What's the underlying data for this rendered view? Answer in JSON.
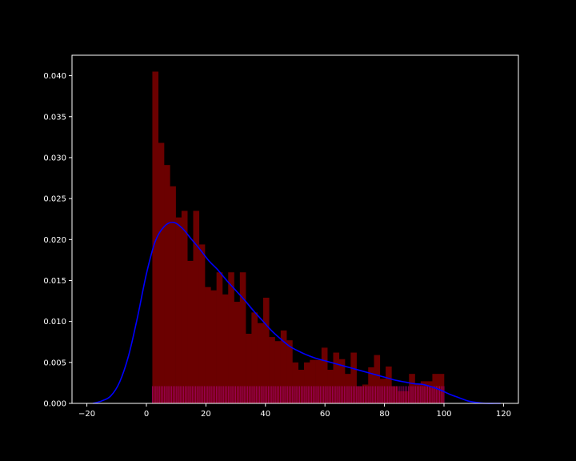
{
  "chart_data": {
    "type": "bar",
    "title": "",
    "xlabel": "",
    "ylabel": "",
    "xlim": [
      -25,
      125
    ],
    "ylim": [
      0,
      0.0425
    ],
    "x_ticks": [
      -20,
      0,
      20,
      40,
      60,
      80,
      100,
      120
    ],
    "x_tick_labels": [
      "−20",
      "0",
      "20",
      "40",
      "60",
      "80",
      "100",
      "120"
    ],
    "y_ticks": [
      0,
      0.005,
      0.01,
      0.015,
      0.02,
      0.025,
      0.03,
      0.035,
      0.04
    ],
    "y_tick_labels": [
      "0.000",
      "0.005",
      "0.010",
      "0.015",
      "0.020",
      "0.025",
      "0.030",
      "0.035",
      "0.040"
    ],
    "grid": false,
    "background": "#000000",
    "axes_color": "#ffffff",
    "histogram": {
      "color": "#6b0000",
      "bin_edges": [
        2.0,
        3.96,
        5.92,
        7.88,
        9.84,
        11.8,
        13.76,
        15.72,
        17.68,
        19.64,
        21.6,
        23.56,
        25.52,
        27.48,
        29.44,
        31.4,
        33.36,
        35.32,
        37.28,
        39.24,
        41.2,
        43.16,
        45.12,
        47.08,
        49.04,
        51.0,
        52.96,
        54.92,
        56.88,
        58.84,
        60.8,
        62.76,
        64.72,
        66.68,
        68.64,
        70.6,
        72.56,
        74.52,
        76.48,
        78.44,
        80.4,
        82.36,
        84.32,
        86.28,
        88.24,
        90.2,
        92.16,
        94.12,
        96.08,
        98.04,
        100.0
      ],
      "densities": [
        0.0405,
        0.0318,
        0.0291,
        0.0265,
        0.0227,
        0.0235,
        0.0174,
        0.0235,
        0.0194,
        0.0142,
        0.0138,
        0.016,
        0.0133,
        0.016,
        0.0124,
        0.016,
        0.0085,
        0.0111,
        0.0098,
        0.0129,
        0.0081,
        0.0076,
        0.0089,
        0.0077,
        0.005,
        0.0041,
        0.005,
        0.0053,
        0.0053,
        0.0068,
        0.0041,
        0.0062,
        0.0054,
        0.0036,
        0.0062,
        0.0021,
        0.0023,
        0.0044,
        0.0059,
        0.003,
        0.0045,
        0.0021,
        0.0015,
        0.0015,
        0.0036,
        0.0024,
        0.0027,
        0.0027,
        0.0036,
        0.0036
      ]
    },
    "kde": {
      "color": "#0000ff",
      "x": [
        -18,
        -15,
        -12,
        -9,
        -6,
        -3,
        0,
        3,
        6,
        9,
        12,
        15,
        18,
        21,
        24,
        27,
        30,
        33,
        36,
        39,
        42,
        45,
        48,
        51,
        54,
        57,
        60,
        63,
        66,
        69,
        72,
        75,
        78,
        81,
        84,
        87,
        90,
        93,
        96,
        99,
        102,
        105,
        108,
        111,
        114,
        117,
        119
      ],
      "y": [
        0.0,
        0.0003,
        0.0009,
        0.0026,
        0.0058,
        0.0105,
        0.0158,
        0.0198,
        0.0216,
        0.0221,
        0.0214,
        0.0201,
        0.0188,
        0.0174,
        0.0163,
        0.015,
        0.0138,
        0.0126,
        0.0113,
        0.0101,
        0.0089,
        0.0079,
        0.007,
        0.0064,
        0.0059,
        0.0055,
        0.0052,
        0.0049,
        0.0046,
        0.0043,
        0.004,
        0.0037,
        0.0034,
        0.0031,
        0.0028,
        0.0026,
        0.0024,
        0.0023,
        0.002,
        0.0016,
        0.0011,
        0.0007,
        0.0003,
        0.0001,
        0.0,
        0.0,
        0.0
      ]
    },
    "rug": {
      "color": "#b0007a",
      "height": 0.0021,
      "x": [
        2.0,
        2.5,
        3.0,
        3.5,
        4.0,
        4.5,
        5.0,
        5.5,
        6.0,
        6.5,
        7.0,
        7.5,
        8.0,
        8.5,
        9.0,
        9.5,
        10.0,
        10.5,
        11.0,
        11.5,
        12.0,
        12.5,
        13.0,
        13.5,
        14.0,
        14.5,
        15.0,
        15.5,
        16.0,
        16.5,
        17.0,
        17.5,
        18.0,
        18.5,
        19.0,
        19.5,
        20.0,
        20.5,
        21.0,
        21.5,
        22.0,
        22.5,
        23.0,
        23.5,
        24.0,
        24.5,
        25.0,
        25.5,
        26.0,
        26.5,
        27.0,
        27.5,
        28.0,
        28.5,
        29.0,
        29.5,
        30.0,
        30.5,
        31.0,
        31.5,
        32.0,
        32.5,
        33.0,
        33.5,
        34.0,
        34.5,
        35.0,
        35.5,
        36.0,
        36.5,
        37.0,
        37.5,
        38.0,
        38.5,
        39.0,
        39.5,
        40.0,
        40.5,
        41.0,
        41.5,
        42.0,
        42.5,
        43.0,
        43.5,
        44.0,
        44.5,
        45.0,
        45.5,
        46.0,
        46.5,
        47.0,
        47.5,
        48.0,
        48.5,
        49.0,
        49.5,
        50.0,
        50.5,
        51.0,
        51.5,
        52.0,
        52.5,
        53.0,
        53.5,
        54.0,
        54.5,
        55.0,
        55.5,
        56.0,
        56.5,
        57.0,
        57.5,
        58.0,
        58.5,
        59.0,
        59.5,
        60.0,
        60.5,
        61.0,
        61.5,
        62.0,
        62.5,
        63.0,
        63.5,
        64.0,
        64.5,
        65.0,
        65.5,
        66.0,
        66.5,
        67.0,
        67.5,
        68.0,
        68.5,
        69.0,
        69.5,
        70.0,
        70.5,
        71.0,
        71.5,
        72.0,
        72.5,
        73.0,
        73.5,
        74.0,
        74.5,
        75.0,
        75.5,
        76.0,
        76.5,
        77.0,
        77.5,
        78.0,
        78.5,
        79.0,
        79.5,
        80.0,
        80.5,
        81.0,
        81.5,
        82.0,
        82.5,
        83.0,
        83.5,
        84.0,
        84.5,
        85.0,
        85.5,
        86.0,
        86.5,
        87.0,
        87.5,
        88.0,
        88.5,
        89.0,
        89.5,
        90.0,
        90.5,
        91.0,
        91.5,
        92.0,
        92.5,
        93.0,
        93.5,
        94.0,
        94.5,
        95.0,
        95.5,
        96.0,
        96.5,
        97.0,
        97.5,
        98.0,
        98.5,
        99.0,
        99.5,
        100.0
      ]
    }
  }
}
